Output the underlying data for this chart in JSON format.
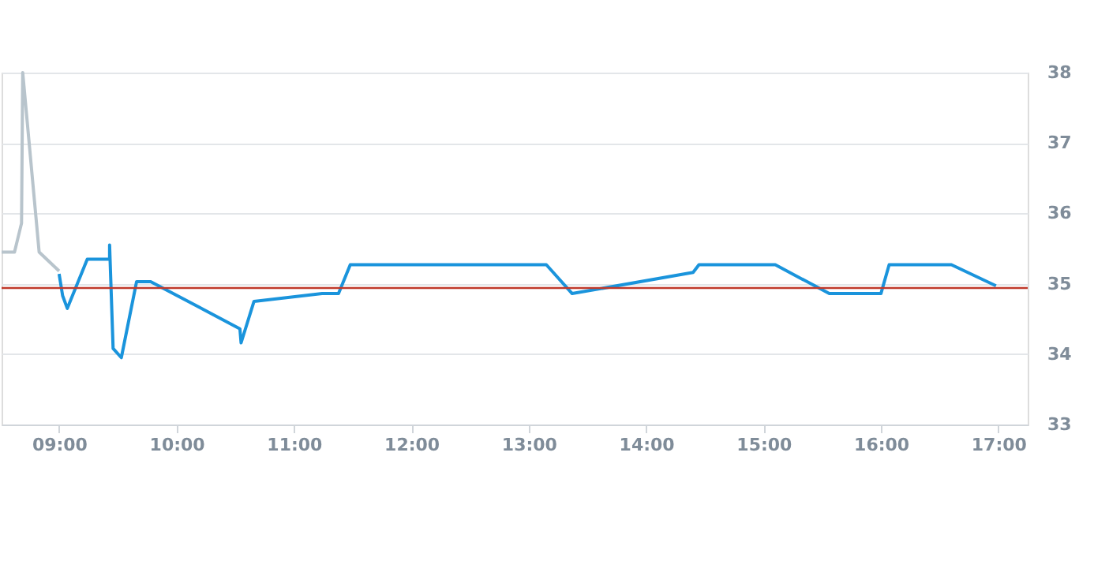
{
  "chart_data": {
    "type": "line",
    "xlim": [
      8.51,
      17.25
    ],
    "ylim": [
      33,
      38
    ],
    "xticks": [
      {
        "value": 9,
        "label": "09:00"
      },
      {
        "value": 10,
        "label": "10:00"
      },
      {
        "value": 11,
        "label": "11:00"
      },
      {
        "value": 12,
        "label": "12:00"
      },
      {
        "value": 13,
        "label": "13:00"
      },
      {
        "value": 14,
        "label": "14:00"
      },
      {
        "value": 15,
        "label": "15:00"
      },
      {
        "value": 16,
        "label": "16:00"
      },
      {
        "value": 17,
        "label": "17:00"
      }
    ],
    "yticks": [
      33,
      34,
      35,
      36,
      37,
      38
    ],
    "grid": "y",
    "marker": "none",
    "line_style": "solid",
    "ref_lines": [
      {
        "axis": "y",
        "value": 34.94,
        "label": null,
        "color": "#c0392b"
      }
    ],
    "series": [
      {
        "color": "#b8c4cc",
        "x": [
          8.51,
          8.62,
          8.68,
          8.69,
          8.83,
          9.0
        ],
        "values": [
          35.45,
          35.45,
          35.86,
          38.0,
          35.45,
          35.18
        ]
      },
      {
        "color": "#1a94dc",
        "x": [
          9.0,
          9.03,
          9.07,
          9.24,
          9.43,
          9.43,
          9.46,
          9.53,
          9.66,
          9.78,
          10.54,
          10.55,
          10.66,
          11.24,
          11.38,
          11.48,
          13.15,
          13.37,
          14.4,
          14.45,
          15.1,
          15.56,
          16.0,
          16.07,
          16.6,
          16.98
        ],
        "values": [
          35.14,
          34.83,
          34.65,
          35.35,
          35.35,
          35.55,
          34.08,
          33.95,
          35.03,
          35.03,
          34.36,
          34.16,
          34.75,
          34.86,
          34.86,
          35.27,
          35.27,
          34.86,
          35.16,
          35.27,
          35.27,
          34.86,
          34.86,
          35.27,
          35.27,
          34.97
        ]
      }
    ]
  }
}
